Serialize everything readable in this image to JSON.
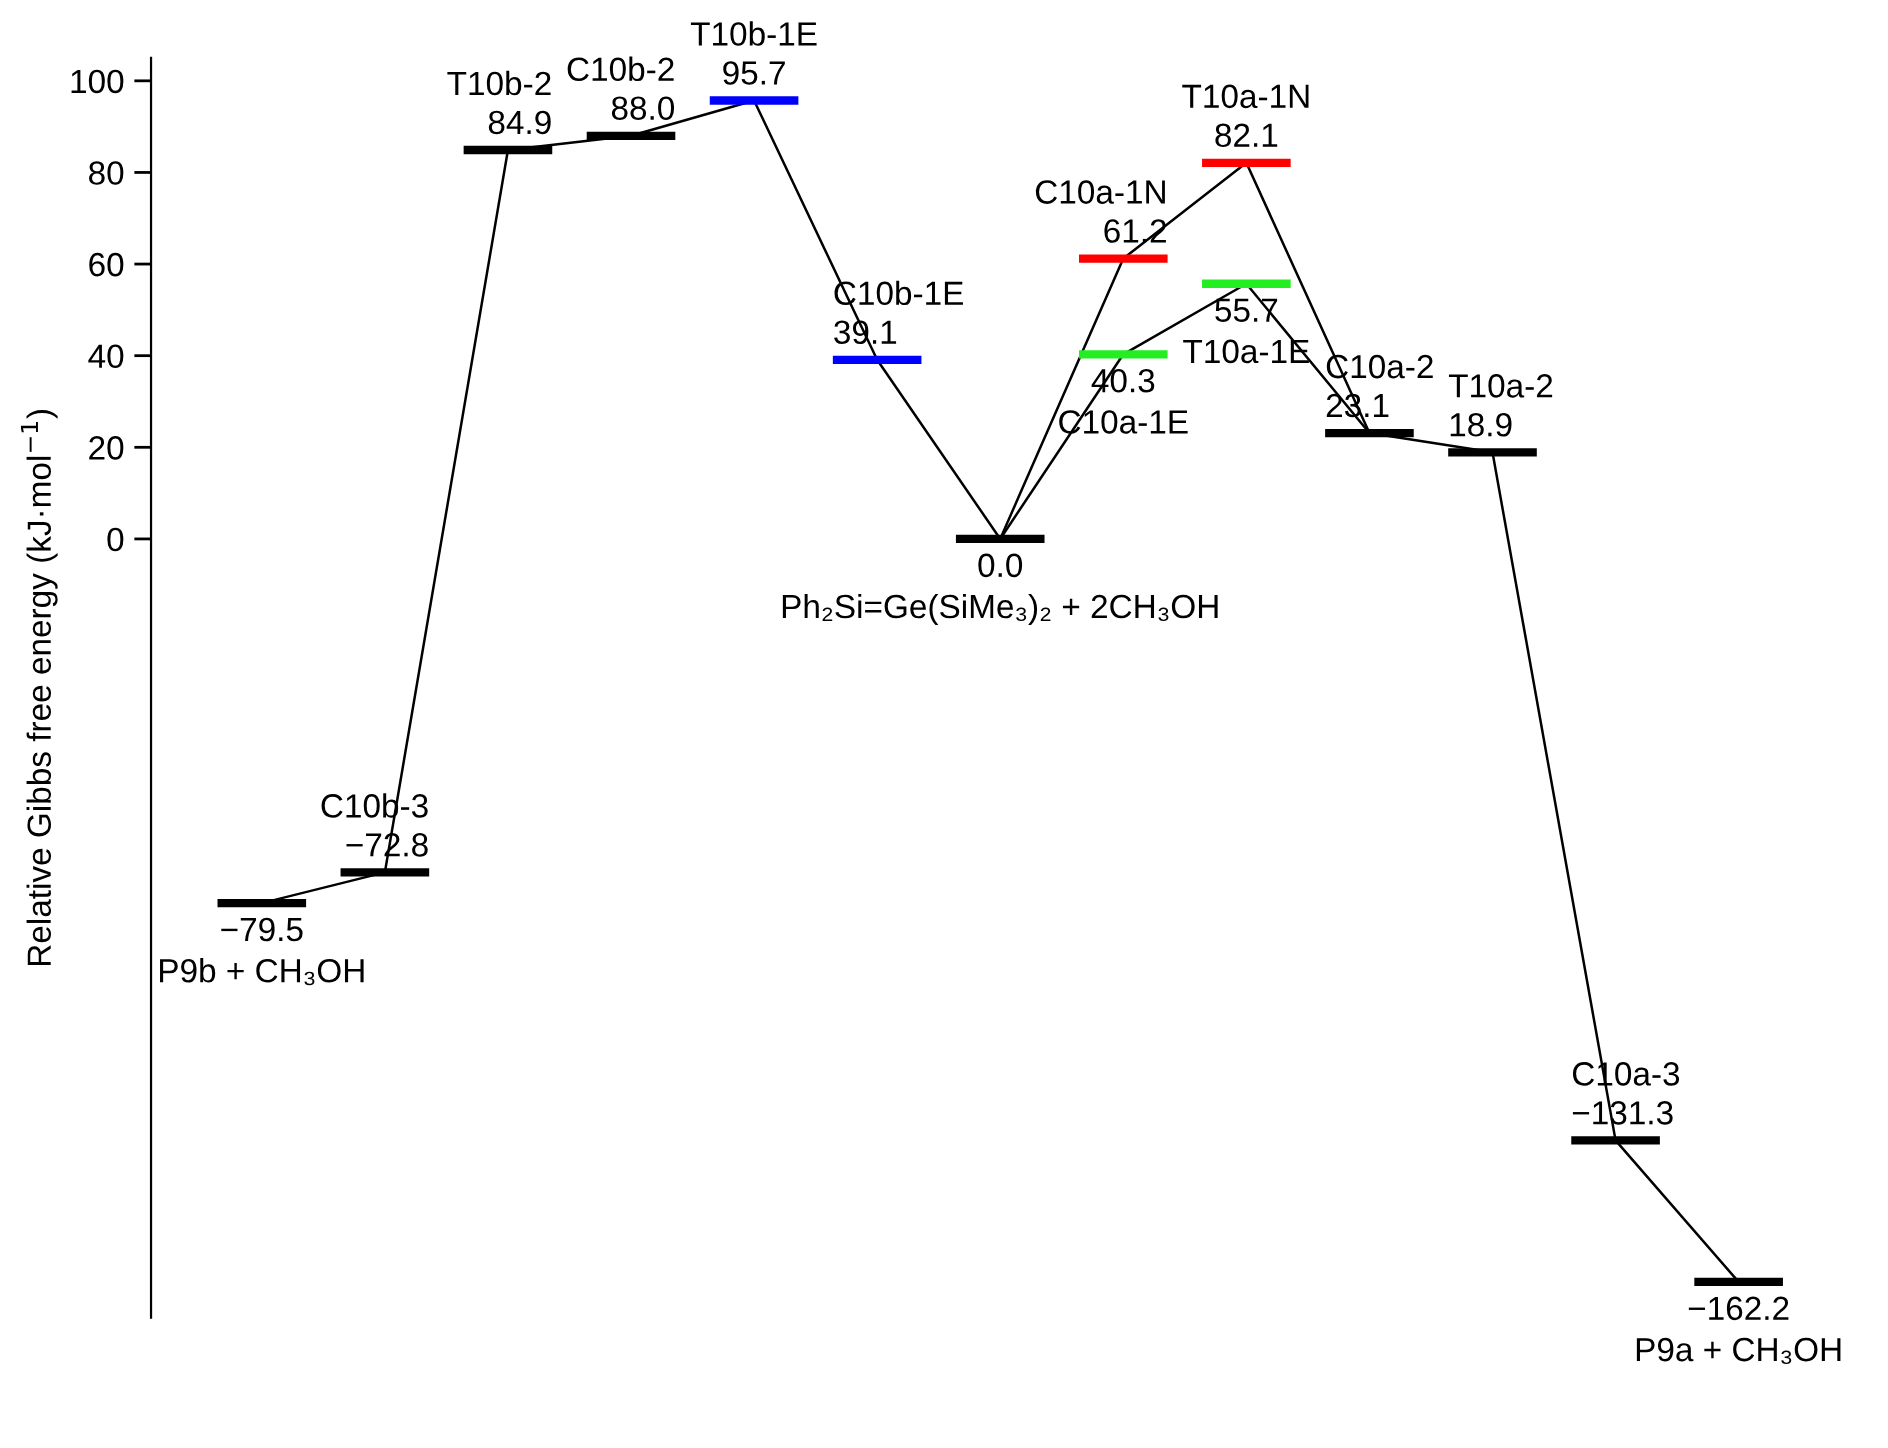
{
  "chart_data": {
    "type": "line",
    "ylabel": "Relative Gibbs free energy (kJ·mol$^{−1}$)",
    "categories": [
      null,
      null,
      null,
      null,
      null,
      null,
      null,
      null,
      null,
      null,
      null,
      null,
      null
    ],
    "ylim": [
      -170,
      105
    ],
    "yticks": [
      0,
      20,
      40,
      60,
      80,
      100
    ],
    "series": [
      {
        "color": "#000000",
        "values": [
          -79.5,
          -72.8,
          84.9,
          88.0,
          95.7,
          39.1,
          0.0,
          null,
          null,
          null,
          null,
          null,
          null
        ],
        "value_labels": [
          "−79.5",
          "−72.8",
          "84.9",
          "88.0",
          "95.7",
          "39.1",
          "0.0",
          null,
          null,
          null,
          null,
          null,
          null
        ],
        "colors": [
          "#000000",
          "#000000",
          "#000000",
          "#000000",
          "#0000ff",
          "#0000ff",
          "#000000",
          null,
          null,
          null,
          null,
          null,
          null
        ]
      },
      {
        "color": "#000000",
        "values": [
          null,
          null,
          null,
          null,
          null,
          null,
          0.0,
          61.2,
          82.1,
          23.1,
          18.9,
          -131.3,
          -162.2
        ],
        "value_labels": [
          null,
          null,
          null,
          null,
          null,
          null,
          null,
          "61.2",
          "82.1",
          "23.1",
          "18.9",
          "−131.3",
          "−162.2"
        ],
        "colors": [
          null,
          null,
          null,
          null,
          null,
          null,
          "#000000",
          "#ff0000",
          "#ff0000",
          "#000000",
          "#000000",
          "#000000",
          "#000000"
        ]
      },
      {
        "color": "#000000",
        "values": [
          null,
          null,
          null,
          null,
          null,
          null,
          0.0,
          40.3,
          55.7,
          23.1,
          null,
          null,
          null
        ],
        "value_labels": [
          null,
          null,
          null,
          null,
          null,
          null,
          null,
          "40.3",
          "55.7",
          null,
          null,
          null,
          null
        ],
        "colors": [
          null,
          null,
          null,
          null,
          null,
          null,
          "#000000",
          "#22ee22",
          "#22ee22",
          "#000000",
          null,
          null,
          null
        ]
      }
    ],
    "annotations": [
      "P9b + CH₃OH",
      "C10b-3",
      "T10b-2",
      "C10b-2",
      "T10b-1E",
      "C10b-1E",
      "Ph₂Si=Ge(SiMe₃)₂ + 2CH₃OH",
      "C10a-1N",
      "T10a-1N",
      "C10a-2",
      "T10a-2",
      "C10a-3",
      "P9a + CH₃OH",
      "C10a-1E",
      "T10a-1E"
    ]
  }
}
